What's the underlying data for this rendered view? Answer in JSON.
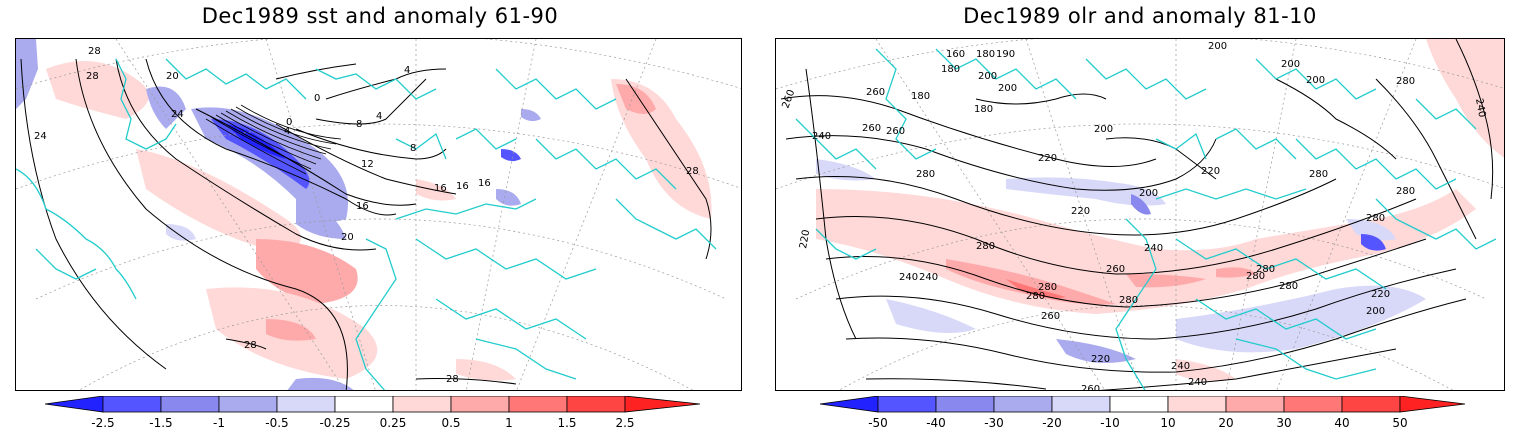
{
  "panels": [
    {
      "title": "Dec1989 sst and anomaly 61-90",
      "contour_labels": [
        "24",
        "28",
        "28",
        "20",
        "24",
        "0",
        "0",
        "4",
        "4",
        "8",
        "4",
        "8",
        "12",
        "16",
        "16",
        "16",
        "16",
        "20",
        "28",
        "28",
        "28"
      ],
      "colorbar": {
        "ticks": [
          "-2.5",
          "-1.5",
          "-1",
          "-0.5",
          "-0.25",
          "0.25",
          "0.5",
          "1",
          "1.5",
          "2.5"
        ],
        "colors": [
          "#2222ff",
          "#5555ff",
          "#8888ee",
          "#aaaaee",
          "#d8d8f8",
          "#ffffff",
          "#ffd8d8",
          "#ffaaaa",
          "#ff7777",
          "#ff4444",
          "#ff2222"
        ]
      }
    },
    {
      "title": "Dec1989 olr and anomaly 81-10",
      "contour_labels": [
        "260",
        "260",
        "240",
        "260",
        "160",
        "180",
        "190",
        "180",
        "200",
        "180",
        "200",
        "180",
        "200",
        "280",
        "240",
        "200",
        "200",
        "200",
        "220",
        "280",
        "260",
        "220",
        "200",
        "280",
        "280",
        "280",
        "220",
        "240",
        "280",
        "240",
        "260",
        "280",
        "280",
        "280",
        "280",
        "280",
        "260",
        "220",
        "240",
        "280",
        "200",
        "220",
        "220",
        "240",
        "240",
        "260"
      ],
      "colorbar": {
        "ticks": [
          "-50",
          "-40",
          "-30",
          "-20",
          "-10",
          "10",
          "20",
          "30",
          "40",
          "50"
        ],
        "colors": [
          "#2222ff",
          "#5555ff",
          "#8888ee",
          "#aaaaee",
          "#d8d8f8",
          "#ffffff",
          "#ffd8d8",
          "#ffaaaa",
          "#ff7777",
          "#ff4444",
          "#ff2222"
        ]
      }
    }
  ],
  "colors": {
    "coastline": "#22cccc",
    "contour": "#000000",
    "graticule": "#999999"
  }
}
